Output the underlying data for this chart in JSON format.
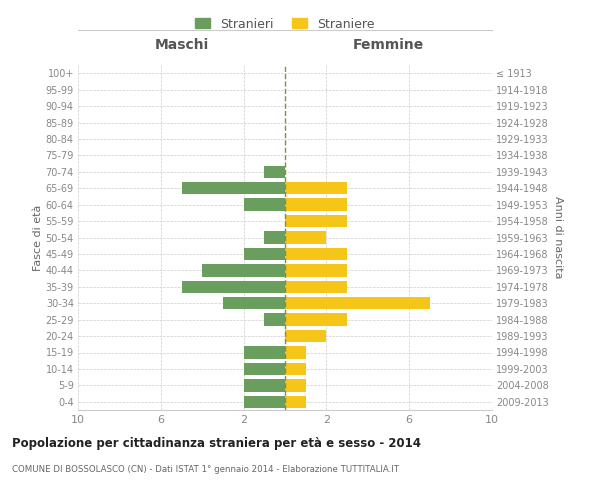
{
  "age_groups": [
    "0-4",
    "5-9",
    "10-14",
    "15-19",
    "20-24",
    "25-29",
    "30-34",
    "35-39",
    "40-44",
    "45-49",
    "50-54",
    "55-59",
    "60-64",
    "65-69",
    "70-74",
    "75-79",
    "80-84",
    "85-89",
    "90-94",
    "95-99",
    "100+"
  ],
  "birth_years": [
    "2009-2013",
    "2004-2008",
    "1999-2003",
    "1994-1998",
    "1989-1993",
    "1984-1988",
    "1979-1983",
    "1974-1978",
    "1969-1973",
    "1964-1968",
    "1959-1963",
    "1954-1958",
    "1949-1953",
    "1944-1948",
    "1939-1943",
    "1934-1938",
    "1929-1933",
    "1924-1928",
    "1919-1923",
    "1914-1918",
    "≤ 1913"
  ],
  "maschi": [
    2,
    2,
    2,
    2,
    0,
    1,
    3,
    5,
    4,
    2,
    1,
    0,
    2,
    5,
    1,
    0,
    0,
    0,
    0,
    0,
    0
  ],
  "femmine": [
    1,
    1,
    1,
    1,
    2,
    3,
    7,
    3,
    3,
    3,
    2,
    3,
    3,
    3,
    0,
    0,
    0,
    0,
    0,
    0,
    0
  ],
  "color_maschi": "#6a9e5e",
  "color_femmine": "#f5c518",
  "color_center_line": "#8b8b40",
  "title_main": "Popolazione per cittadinanza straniera per età e sesso - 2014",
  "title_sub": "COMUNE DI BOSSOLASCO (CN) - Dati ISTAT 1° gennaio 2014 - Elaborazione TUTTITALIA.IT",
  "label_maschi": "Stranieri",
  "label_femmine": "Straniere",
  "label_fasce": "Fasce di età",
  "label_anni": "Anni di nascita",
  "label_maschi_header": "Maschi",
  "label_femmine_header": "Femmine",
  "xlim": 10,
  "background_color": "#ffffff",
  "grid_color": "#cccccc"
}
